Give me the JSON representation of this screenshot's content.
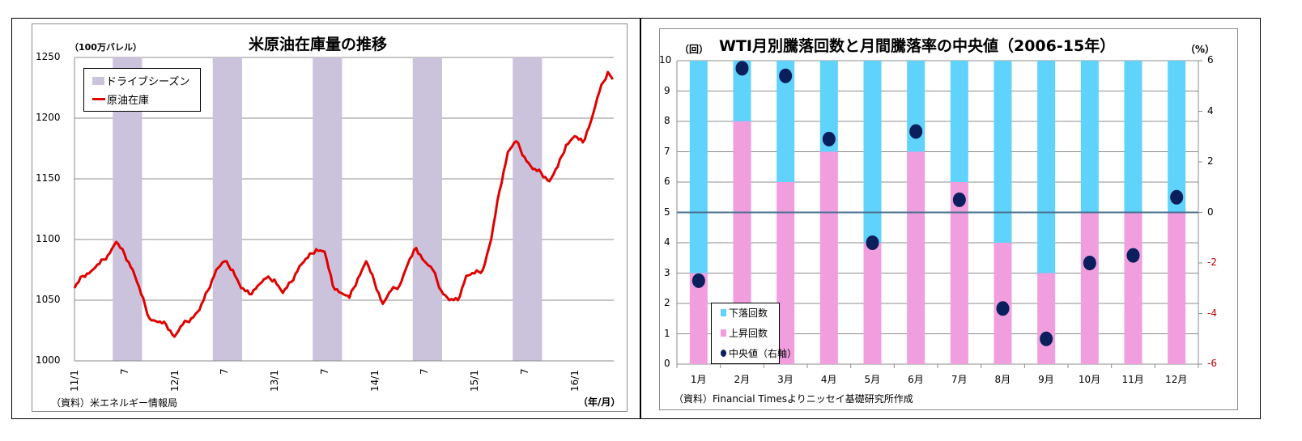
{
  "left_chart": {
    "title": "米原油在庫量の推移",
    "y_unit": "（100万バレル）",
    "x_unit": "（年/月）",
    "source": "（資料）米エネルギー情報局",
    "y_ticks": [
      "1250",
      "1200",
      "1150",
      "1100",
      "1050",
      "1000"
    ],
    "x_ticks": [
      "11/1",
      "7",
      "12/1",
      "7",
      "13/1",
      "7",
      "14/1",
      "7",
      "15/1",
      "7",
      "16/1"
    ],
    "legend": {
      "band_label": "ドライブシーズン",
      "line_label": "原油在庫"
    },
    "colors": {
      "line": "#e00000",
      "band": "#cbc3dc",
      "grid": "#8c8c8c"
    }
  },
  "right_chart": {
    "title": "WTI月別騰落回数と月間騰落率の中央値（2006-15年）",
    "y_unit_left": "（回）",
    "y_unit_right": "（%）",
    "source": "（資料）Financial Timesよりニッセイ基礎研究所作成",
    "y_ticks_left": [
      "10",
      "9",
      "8",
      "7",
      "6",
      "5",
      "4",
      "3",
      "2",
      "1",
      "0"
    ],
    "y_ticks_right": [
      "6",
      "4",
      "2",
      "0",
      "-2",
      "-4",
      "-6"
    ],
    "categories": [
      "1月",
      "2月",
      "3月",
      "4月",
      "5月",
      "6月",
      "7月",
      "8月",
      "9月",
      "10月",
      "11月",
      "12月"
    ],
    "legend": {
      "down_label": "下落回数",
      "up_label": "上昇回数",
      "median_label": "中央値（右軸）"
    },
    "colors": {
      "down": "#5fd3fb",
      "up": "#f09ede",
      "median": "#0a1f5c",
      "zero_line": "#4a7090",
      "neg_tick": "#c00000"
    }
  },
  "chart_data": [
    {
      "type": "line",
      "title": "米原油在庫量の推移",
      "xlabel": "（年/月）",
      "ylabel": "（100万バレル）",
      "ylim": [
        1000,
        1250
      ],
      "x_ticks": [
        "11/1",
        "11/7",
        "12/1",
        "12/7",
        "13/1",
        "13/7",
        "14/1",
        "14/7",
        "15/1",
        "15/7",
        "16/1"
      ],
      "grid": true,
      "legend_position": "upper-left",
      "shaded_bands": {
        "name": "ドライブシーズン",
        "periods": [
          "2011-06~2011-08",
          "2012-06~2012-08",
          "2013-06~2013-08",
          "2014-06~2014-08",
          "2015-06~2015-08"
        ]
      },
      "series": [
        {
          "name": "原油在庫",
          "x": [
            "11/1",
            "11/2",
            "11/3",
            "11/4",
            "11/5",
            "11/6",
            "11/7",
            "11/8",
            "11/9",
            "11/10",
            "11/11",
            "11/12",
            "12/1",
            "12/2",
            "12/3",
            "12/4",
            "12/5",
            "12/6",
            "12/7",
            "12/8",
            "12/9",
            "12/10",
            "12/11",
            "12/12",
            "13/1",
            "13/2",
            "13/3",
            "13/4",
            "13/5",
            "13/6",
            "13/7",
            "13/8",
            "13/9",
            "13/10",
            "13/11",
            "13/12",
            "14/1",
            "14/2",
            "14/3",
            "14/4",
            "14/5",
            "14/6",
            "14/7",
            "14/8",
            "14/9",
            "14/10",
            "14/11",
            "14/12",
            "15/1",
            "15/2",
            "15/3",
            "15/4",
            "15/5",
            "15/6",
            "15/7",
            "15/8",
            "15/9",
            "15/10",
            "15/11",
            "15/12",
            "16/1",
            "16/2",
            "16/3",
            "16/4",
            "16/5"
          ],
          "values": [
            1060,
            1070,
            1074,
            1080,
            1087,
            1098,
            1088,
            1075,
            1055,
            1035,
            1032,
            1030,
            1020,
            1030,
            1035,
            1042,
            1058,
            1075,
            1082,
            1075,
            1060,
            1055,
            1062,
            1068,
            1067,
            1056,
            1065,
            1078,
            1085,
            1092,
            1090,
            1062,
            1056,
            1052,
            1068,
            1082,
            1065,
            1047,
            1058,
            1062,
            1080,
            1093,
            1082,
            1075,
            1058,
            1050,
            1050,
            1070,
            1072,
            1075,
            1100,
            1140,
            1172,
            1181,
            1168,
            1158,
            1155,
            1148,
            1160,
            1178,
            1185,
            1180,
            1198,
            1222,
            1238
          ]
        }
      ]
    },
    {
      "type": "bar",
      "stacked": true,
      "title": "WTI月別騰落回数と月間騰落率の中央値（2006-15年）",
      "xlabel": "",
      "ylabel": "（回）",
      "ylabel_right": "（%）",
      "ylim": [
        0,
        10
      ],
      "ylim_right": [
        -6,
        6
      ],
      "grid": true,
      "legend_position": "lower-left",
      "categories": [
        "1月",
        "2月",
        "3月",
        "4月",
        "5月",
        "6月",
        "7月",
        "8月",
        "9月",
        "10月",
        "11月",
        "12月"
      ],
      "series": [
        {
          "name": "上昇回数",
          "values": [
            3,
            8,
            6,
            7,
            4,
            7,
            6,
            4,
            3,
            5,
            5,
            5
          ]
        },
        {
          "name": "下落回数",
          "values": [
            7,
            2,
            4,
            3,
            6,
            3,
            4,
            6,
            7,
            5,
            5,
            5
          ]
        },
        {
          "name": "中央値（右軸）",
          "type": "scatter",
          "axis": "right",
          "values": [
            -2.7,
            5.7,
            5.4,
            2.9,
            -1.2,
            3.2,
            0.5,
            -3.8,
            -5.0,
            -2.0,
            -1.7,
            0.6
          ]
        }
      ]
    }
  ]
}
